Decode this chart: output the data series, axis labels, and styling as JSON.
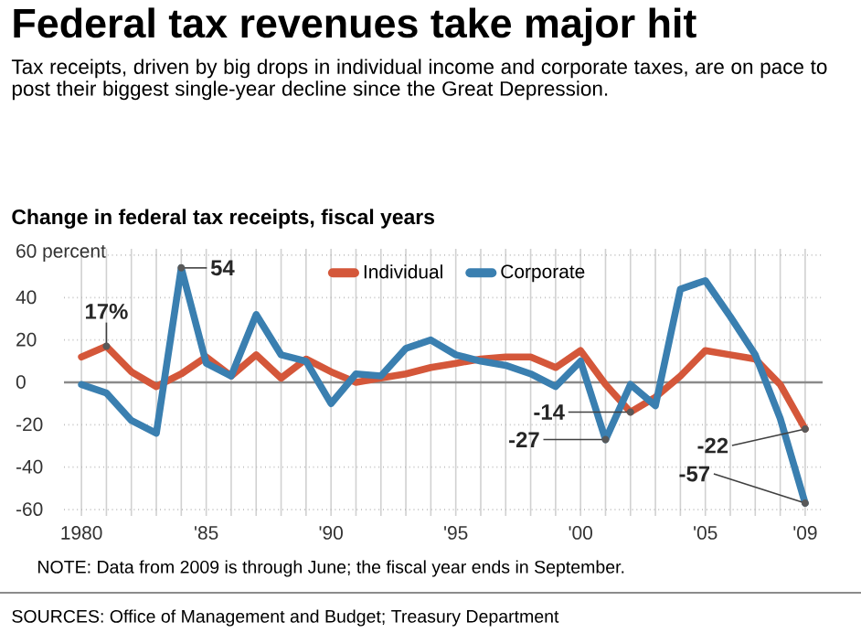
{
  "chart_data": {
    "type": "line",
    "title": "Federal tax revenues take major hit",
    "subtitle": "Tax receipts, driven by big drops in individual income and corporate taxes, are on pace to post their biggest single-year decline since the Great Depression.",
    "annotations": [
      "Change in federal tax receipts, fiscal years",
      "NOTE: Data from 2009 is through June; the fiscal year ends in September.",
      "SOURCES: Office of Management and Budget; Treasury Department",
      {
        "text": "17%",
        "x": 1981,
        "y": 17
      },
      {
        "text": "54",
        "x": 1984,
        "y": 54
      },
      {
        "text": "-14",
        "x": 2002,
        "y": -14
      },
      {
        "text": "-27",
        "x": 2001,
        "y": -27
      },
      {
        "text": "-22",
        "x": 2009,
        "y": -22
      },
      {
        "text": "-57",
        "x": 2009,
        "y": -57
      }
    ],
    "x": [
      1980,
      1981,
      1982,
      1983,
      1984,
      1985,
      1986,
      1987,
      1988,
      1989,
      1990,
      1991,
      1992,
      1993,
      1994,
      1995,
      1996,
      1997,
      1998,
      1999,
      2000,
      2001,
      2002,
      2003,
      2004,
      2005,
      2006,
      2007,
      2008,
      2009
    ],
    "series": [
      {
        "name": "Individual",
        "color": "#d4573a",
        "values": [
          12,
          17,
          5,
          -2,
          4,
          12,
          3,
          13,
          2,
          11,
          5,
          0,
          2,
          4,
          7,
          9,
          11,
          12,
          12,
          7,
          15,
          -1,
          -14,
          -7,
          3,
          15,
          13,
          11,
          -1,
          -22
        ]
      },
      {
        "name": "Corporate",
        "color": "#3a7fb0",
        "values": [
          -1,
          -5,
          -18,
          -24,
          54,
          9,
          3,
          32,
          13,
          10,
          -10,
          4,
          3,
          16,
          20,
          13,
          10,
          8,
          4,
          -2,
          10,
          -27,
          -1,
          -11,
          44,
          48,
          31,
          13,
          -17,
          -57
        ]
      }
    ],
    "xlim": [
      1979.3,
      2009.7
    ],
    "ylim": [
      -63,
      63
    ],
    "xticks": [
      {
        "value": 1980,
        "label": "1980"
      },
      {
        "value": 1981,
        "label": null
      },
      {
        "value": 1982,
        "label": null
      },
      {
        "value": 1983,
        "label": null
      },
      {
        "value": 1984,
        "label": null
      },
      {
        "value": 1985,
        "label": "'85"
      },
      {
        "value": 1986,
        "label": null
      },
      {
        "value": 1987,
        "label": null
      },
      {
        "value": 1988,
        "label": null
      },
      {
        "value": 1989,
        "label": null
      },
      {
        "value": 1990,
        "label": "'90"
      },
      {
        "value": 1991,
        "label": null
      },
      {
        "value": 1992,
        "label": null
      },
      {
        "value": 1993,
        "label": null
      },
      {
        "value": 1994,
        "label": null
      },
      {
        "value": 1995,
        "label": "'95"
      },
      {
        "value": 1996,
        "label": null
      },
      {
        "value": 1997,
        "label": null
      },
      {
        "value": 1998,
        "label": null
      },
      {
        "value": 1999,
        "label": null
      },
      {
        "value": 2000,
        "label": "'00"
      },
      {
        "value": 2001,
        "label": null
      },
      {
        "value": 2002,
        "label": null
      },
      {
        "value": 2003,
        "label": null
      },
      {
        "value": 2004,
        "label": null
      },
      {
        "value": 2005,
        "label": "'05"
      },
      {
        "value": 2006,
        "label": null
      },
      {
        "value": 2007,
        "label": null
      },
      {
        "value": 2008,
        "label": null
      },
      {
        "value": 2009,
        "label": "'09"
      }
    ],
    "yticks": [
      {
        "value": 60,
        "label": "60 percent"
      },
      40,
      20,
      0,
      -20,
      -40,
      -60
    ],
    "ref_lines": [
      {
        "axis": "y",
        "value": 0,
        "color": "#8a8a8a"
      }
    ],
    "grid": true,
    "legend": "top",
    "marker": "none",
    "line_style": "solid"
  }
}
